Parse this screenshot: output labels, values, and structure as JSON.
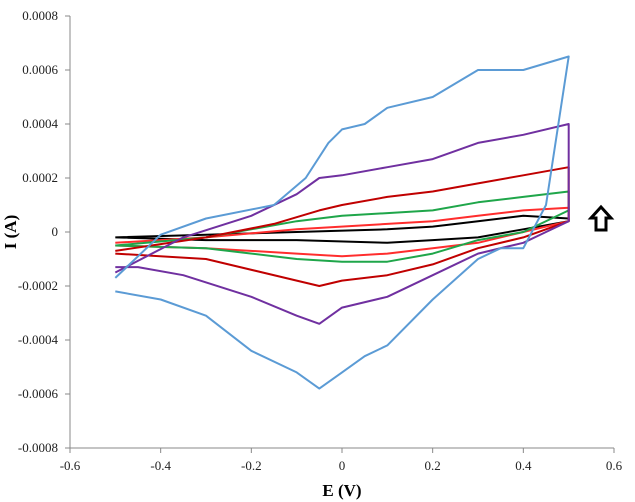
{
  "chart_data": {
    "type": "line",
    "xlabel": "E (V)",
    "ylabel": "I (A)",
    "xlim": [
      -0.6,
      0.6
    ],
    "ylim": [
      -0.0008,
      0.0008
    ],
    "x_ticks": [
      "-0.6",
      "-0.4",
      "-0.2",
      "0",
      "0.2",
      "0.4",
      "0.6"
    ],
    "y_ticks": [
      "0.0008",
      "0.0006",
      "0.0004",
      "0.0002",
      "0",
      "-0.0002",
      "-0.0004",
      "-0.0006",
      "-0.0008"
    ],
    "grid": false,
    "legend": "none",
    "annotation": {
      "icon": "up-arrow-icon",
      "meaning": "increasing scan rate"
    },
    "series": [
      {
        "color": "#000000",
        "anodic": [
          [
            -0.5,
            -2e-05
          ],
          [
            -0.3,
            -1e-05
          ],
          [
            -0.1,
            0.0
          ],
          [
            0.1,
            1e-05
          ],
          [
            0.2,
            2e-05
          ],
          [
            0.3,
            4e-05
          ],
          [
            0.4,
            6e-05
          ],
          [
            0.5,
            5e-05
          ]
        ],
        "cathodic": [
          [
            0.5,
            4e-05
          ],
          [
            0.4,
            1e-05
          ],
          [
            0.3,
            -2e-05
          ],
          [
            0.2,
            -3e-05
          ],
          [
            0.1,
            -4e-05
          ],
          [
            -0.1,
            -3e-05
          ],
          [
            -0.3,
            -3e-05
          ],
          [
            -0.5,
            -2e-05
          ]
        ]
      },
      {
        "color": "#ff2d2d",
        "anodic": [
          [
            -0.5,
            -4e-05
          ],
          [
            -0.3,
            -2e-05
          ],
          [
            -0.1,
            1e-05
          ],
          [
            0.1,
            3e-05
          ],
          [
            0.2,
            4e-05
          ],
          [
            0.3,
            6e-05
          ],
          [
            0.4,
            8e-05
          ],
          [
            0.5,
            9e-05
          ]
        ],
        "cathodic": [
          [
            0.5,
            4e-05
          ],
          [
            0.4,
            0.0
          ],
          [
            0.3,
            -4e-05
          ],
          [
            0.2,
            -6e-05
          ],
          [
            0.1,
            -8e-05
          ],
          [
            0.0,
            -9e-05
          ],
          [
            -0.1,
            -8e-05
          ],
          [
            -0.3,
            -6e-05
          ],
          [
            -0.5,
            -5e-05
          ]
        ]
      },
      {
        "color": "#1fa64a",
        "anodic": [
          [
            -0.5,
            -5e-05
          ],
          [
            -0.3,
            -2e-05
          ],
          [
            -0.1,
            4e-05
          ],
          [
            0.0,
            6e-05
          ],
          [
            0.1,
            7e-05
          ],
          [
            0.2,
            8e-05
          ],
          [
            0.3,
            0.00011
          ],
          [
            0.4,
            0.00013
          ],
          [
            0.5,
            0.00015
          ]
        ],
        "cathodic": [
          [
            0.5,
            8e-05
          ],
          [
            0.4,
            0.0
          ],
          [
            0.3,
            -3e-05
          ],
          [
            0.2,
            -8e-05
          ],
          [
            0.1,
            -0.00011
          ],
          [
            0.0,
            -0.00011
          ],
          [
            -0.1,
            -0.0001
          ],
          [
            -0.3,
            -6e-05
          ],
          [
            -0.5,
            -5e-05
          ]
        ]
      },
      {
        "color": "#c00000",
        "anodic": [
          [
            -0.5,
            -7e-05
          ],
          [
            -0.3,
            -2e-05
          ],
          [
            -0.15,
            3e-05
          ],
          [
            -0.05,
            8e-05
          ],
          [
            0.0,
            0.0001
          ],
          [
            0.1,
            0.00013
          ],
          [
            0.2,
            0.00015
          ],
          [
            0.3,
            0.00018
          ],
          [
            0.4,
            0.00021
          ],
          [
            0.5,
            0.00024
          ]
        ],
        "cathodic": [
          [
            0.5,
            4e-05
          ],
          [
            0.4,
            -2e-05
          ],
          [
            0.3,
            -6e-05
          ],
          [
            0.2,
            -0.00012
          ],
          [
            0.1,
            -0.00016
          ],
          [
            0.0,
            -0.00018
          ],
          [
            -0.05,
            -0.0002
          ],
          [
            -0.1,
            -0.00018
          ],
          [
            -0.3,
            -0.0001
          ],
          [
            -0.5,
            -8e-05
          ]
        ]
      },
      {
        "color": "#7030a0",
        "anodic": [
          [
            -0.5,
            -0.00015
          ],
          [
            -0.35,
            -2e-05
          ],
          [
            -0.2,
            6e-05
          ],
          [
            -0.1,
            0.00014
          ],
          [
            -0.05,
            0.0002
          ],
          [
            0.0,
            0.00021
          ],
          [
            0.1,
            0.00024
          ],
          [
            0.2,
            0.00027
          ],
          [
            0.3,
            0.00033
          ],
          [
            0.4,
            0.00036
          ],
          [
            0.5,
            0.0004
          ]
        ],
        "cathodic": [
          [
            0.5,
            4e-05
          ],
          [
            0.45,
            0.0
          ],
          [
            0.4,
            -4e-05
          ],
          [
            0.3,
            -8e-05
          ],
          [
            0.2,
            -0.00016
          ],
          [
            0.1,
            -0.00024
          ],
          [
            0.0,
            -0.00028
          ],
          [
            -0.05,
            -0.00034
          ],
          [
            -0.1,
            -0.00031
          ],
          [
            -0.2,
            -0.00024
          ],
          [
            -0.35,
            -0.00016
          ],
          [
            -0.45,
            -0.00013
          ],
          [
            -0.5,
            -0.00013
          ]
        ]
      },
      {
        "color": "#5b9bd5",
        "anodic": [
          [
            -0.5,
            -0.00017
          ],
          [
            -0.4,
            -1e-05
          ],
          [
            -0.3,
            5e-05
          ],
          [
            -0.15,
            0.0001
          ],
          [
            -0.08,
            0.0002
          ],
          [
            -0.03,
            0.00033
          ],
          [
            0.0,
            0.00038
          ],
          [
            0.05,
            0.0004
          ],
          [
            0.1,
            0.00046
          ],
          [
            0.2,
            0.0005
          ],
          [
            0.3,
            0.0006
          ],
          [
            0.4,
            0.0006
          ],
          [
            0.5,
            0.00065
          ]
        ],
        "cathodic": [
          [
            0.5,
            0.00065
          ],
          [
            0.45,
            0.0001
          ],
          [
            0.4,
            -6e-05
          ],
          [
            0.35,
            -6e-05
          ],
          [
            0.3,
            -0.0001
          ],
          [
            0.2,
            -0.00025
          ],
          [
            0.1,
            -0.00042
          ],
          [
            0.05,
            -0.00046
          ],
          [
            0.0,
            -0.00052
          ],
          [
            -0.05,
            -0.00058
          ],
          [
            -0.1,
            -0.00052
          ],
          [
            -0.2,
            -0.00044
          ],
          [
            -0.3,
            -0.00031
          ],
          [
            -0.4,
            -0.00025
          ],
          [
            -0.5,
            -0.00022
          ]
        ]
      }
    ]
  }
}
